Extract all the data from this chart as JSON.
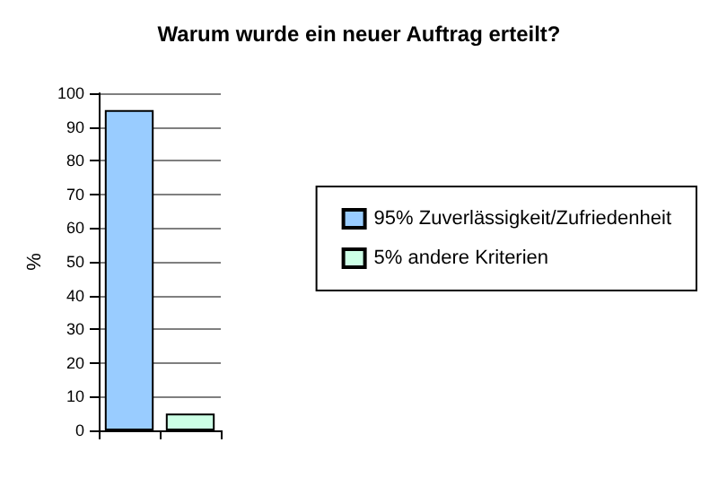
{
  "chart_data": {
    "type": "bar",
    "title": "Warum wurde ein neuer Auftrag erteilt?",
    "ylabel": "%",
    "categories": [
      null,
      null
    ],
    "series": [
      {
        "name": "95% Zuverlässigkeit/Zufriedenheit",
        "color": "#99ccff",
        "values": [
          95,
          null
        ]
      },
      {
        "name": "5% andere Kriterien",
        "color": "#ccffe6",
        "values": [
          null,
          5
        ]
      }
    ],
    "ylim": [
      0,
      100
    ],
    "yticks": [
      0,
      10,
      20,
      30,
      40,
      50,
      60,
      70,
      80,
      90,
      100
    ],
    "grid": "y",
    "legend": "right"
  }
}
